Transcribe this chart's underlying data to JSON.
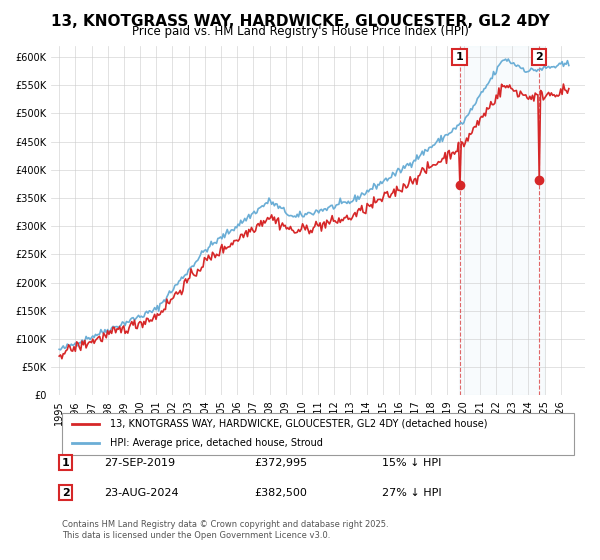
{
  "title": "13, KNOTGRASS WAY, HARDWICKE, GLOUCESTER, GL2 4DY",
  "subtitle": "Price paid vs. HM Land Registry's House Price Index (HPI)",
  "ylabel_values": [
    "£0",
    "£50K",
    "£100K",
    "£150K",
    "£200K",
    "£250K",
    "£300K",
    "£350K",
    "£400K",
    "£450K",
    "£500K",
    "£550K",
    "£600K"
  ],
  "ylim": [
    0,
    620000
  ],
  "yticks": [
    0,
    50000,
    100000,
    150000,
    200000,
    250000,
    300000,
    350000,
    400000,
    450000,
    500000,
    550000,
    600000
  ],
  "xlim_start": 1994.5,
  "xlim_end": 2027.5,
  "hpi_color": "#6baed6",
  "price_color": "#d62728",
  "marker1_date": 2019.75,
  "marker1_price": 372995,
  "marker2_date": 2024.65,
  "marker2_price": 382500,
  "marker1_label": "1",
  "marker2_label": "2",
  "legend1": "13, KNOTGRASS WAY, HARDWICKE, GLOUCESTER, GL2 4DY (detached house)",
  "legend2": "HPI: Average price, detached house, Stroud",
  "note1_label": "1",
  "note1_date": "27-SEP-2019",
  "note1_price": "£372,995",
  "note1_hpi": "15% ↓ HPI",
  "note2_label": "2",
  "note2_date": "23-AUG-2024",
  "note2_price": "£382,500",
  "note2_hpi": "27% ↓ HPI",
  "copyright": "Contains HM Land Registry data © Crown copyright and database right 2025.\nThis data is licensed under the Open Government Licence v3.0.",
  "background_color": "#ffffff",
  "grid_color": "#cccccc",
  "highlight_color": "#ddeeff"
}
